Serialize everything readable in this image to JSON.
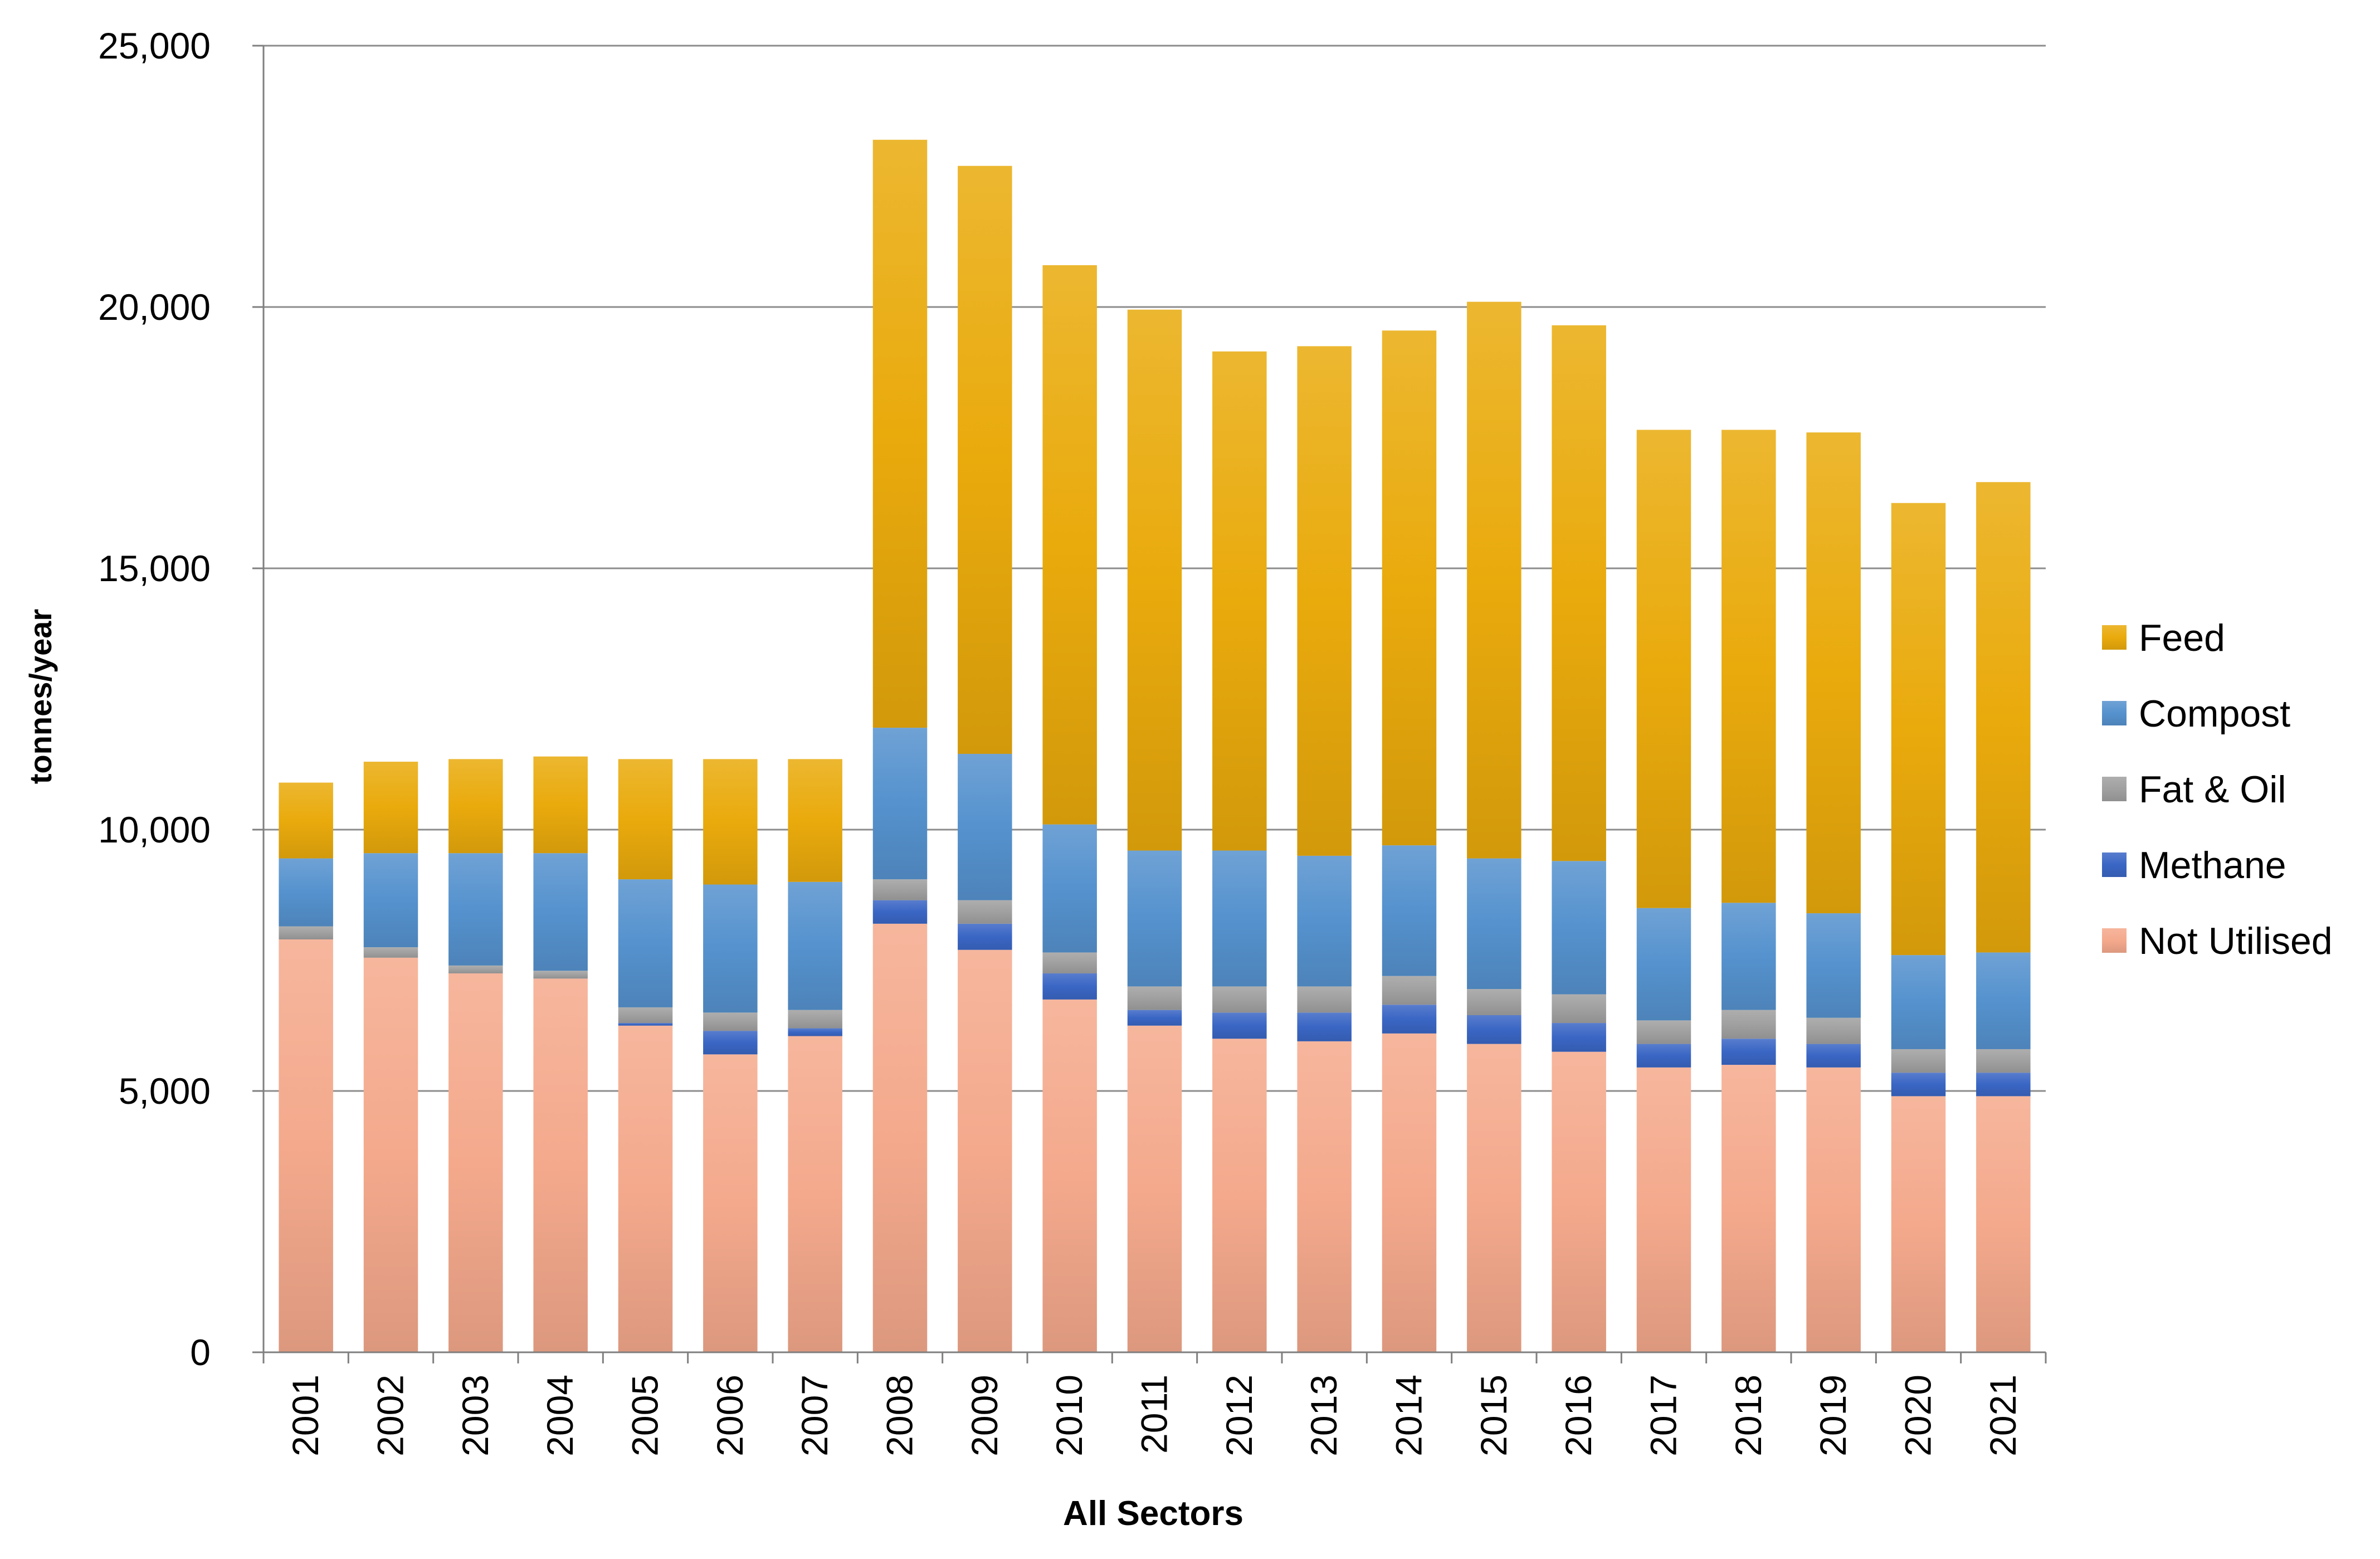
{
  "chart_data": {
    "type": "stacked-bar",
    "xlabel": "All Sectors",
    "ylabel": "tonnes/year",
    "ylim": [
      0,
      25000
    ],
    "yticks": [
      0,
      5000,
      10000,
      15000,
      20000,
      25000
    ],
    "ytick_labels": [
      "0",
      "5,000",
      "10,000",
      "15,000",
      "20,000",
      "25,000"
    ],
    "grid": true,
    "legend_position": "right",
    "categories": [
      "2001",
      "2002",
      "2003",
      "2004",
      "2005",
      "2006",
      "2007",
      "2008",
      "2009",
      "2010",
      "2011",
      "2012",
      "2013",
      "2014",
      "2015",
      "2016",
      "2017",
      "2018",
      "2019",
      "2020",
      "2021"
    ],
    "series": [
      {
        "name": "Not Utilised",
        "color": "#F4A98C",
        "values": [
          7900,
          7550,
          7250,
          7150,
          6250,
          5700,
          6050,
          8200,
          7700,
          6750,
          6250,
          6000,
          5950,
          6100,
          5900,
          5750,
          5450,
          5500,
          5450,
          4900,
          4900
        ]
      },
      {
        "name": "Methane",
        "color": "#3A66C4",
        "values": [
          0,
          0,
          0,
          0,
          50,
          450,
          150,
          450,
          500,
          500,
          300,
          500,
          550,
          550,
          550,
          550,
          450,
          500,
          450,
          450,
          450
        ]
      },
      {
        "name": "Fat & Oil",
        "color": "#A0A0A0",
        "values": [
          250,
          200,
          150,
          150,
          300,
          350,
          350,
          400,
          450,
          400,
          450,
          500,
          500,
          550,
          500,
          550,
          450,
          550,
          500,
          450,
          450
        ]
      },
      {
        "name": "Compost",
        "color": "#5592CE",
        "values": [
          1300,
          1800,
          2150,
          2250,
          2450,
          2450,
          2450,
          2900,
          2800,
          2450,
          2600,
          2600,
          2500,
          2500,
          2500,
          2550,
          2150,
          2050,
          2000,
          1800,
          1850
        ]
      },
      {
        "name": "Feed",
        "color": "#E9AA0C",
        "values": [
          1450,
          1750,
          1800,
          1850,
          2300,
          2400,
          2350,
          11250,
          11250,
          10700,
          10350,
          9550,
          9750,
          9850,
          10650,
          10250,
          9150,
          9050,
          9200,
          8650,
          9000
        ]
      }
    ],
    "legend": [
      "Feed",
      "Compost",
      "Fat & Oil",
      "Methane",
      "Not Utilised"
    ]
  }
}
